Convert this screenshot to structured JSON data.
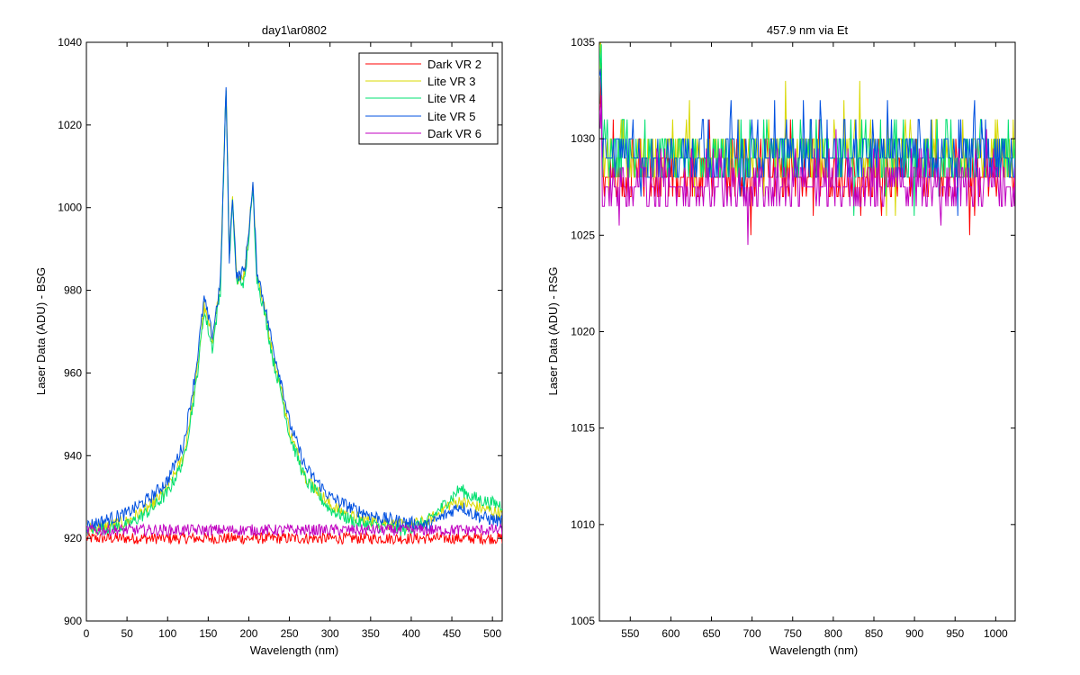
{
  "figure": {
    "background": "#ffffff"
  },
  "chart_data": [
    {
      "type": "line",
      "title": "day1\\ar0802",
      "xlabel": "Wavelength (nm)",
      "ylabel": "Laser Data (ADU) - BSG",
      "xlim": [
        0,
        512
      ],
      "ylim": [
        900,
        1040
      ],
      "xticks": [
        0,
        50,
        100,
        150,
        200,
        250,
        300,
        350,
        400,
        450,
        500
      ],
      "yticks": [
        900,
        920,
        940,
        960,
        980,
        1000,
        1020,
        1040
      ],
      "grid": false,
      "legend": {
        "position": "top-right"
      },
      "series": [
        {
          "name": "Dark VR 2",
          "color": "#ff0000",
          "shape": "flat",
          "x": [
            0,
            512
          ],
          "y": [
            920,
            920
          ]
        },
        {
          "name": "Lite VR 3",
          "color": "#d8d800",
          "shape": "peak",
          "x": [
            0,
            50,
            80,
            100,
            120,
            135,
            145,
            155,
            165,
            172,
            176,
            180,
            185,
            195,
            205,
            210,
            220,
            230,
            240,
            250,
            270,
            300,
            330,
            360,
            390,
            420,
            445,
            460,
            475,
            490,
            512
          ],
          "y": [
            922,
            924,
            928,
            932,
            940,
            958,
            976,
            968,
            982,
            1030,
            988,
            1002,
            983,
            984,
            1006,
            984,
            975,
            964,
            956,
            946,
            935,
            928,
            925,
            924,
            923,
            924,
            928,
            929,
            928,
            927,
            926
          ]
        },
        {
          "name": "Lite VR 4",
          "color": "#00e070",
          "shape": "peak",
          "x": [
            0,
            50,
            80,
            100,
            120,
            135,
            145,
            155,
            165,
            172,
            176,
            180,
            185,
            195,
            205,
            210,
            220,
            230,
            240,
            250,
            270,
            300,
            330,
            360,
            390,
            420,
            445,
            460,
            475,
            490,
            512
          ],
          "y": [
            922,
            923,
            927,
            931,
            939,
            957,
            975,
            966,
            980,
            1029,
            987,
            1001,
            982,
            982,
            1004,
            983,
            974,
            963,
            955,
            945,
            934,
            927,
            924,
            923,
            922,
            924,
            929,
            932,
            930,
            929,
            928
          ]
        },
        {
          "name": "Lite VR 5",
          "color": "#0050e0",
          "shape": "peak",
          "x": [
            0,
            50,
            80,
            100,
            120,
            135,
            145,
            155,
            165,
            172,
            176,
            180,
            185,
            195,
            205,
            210,
            220,
            230,
            240,
            250,
            270,
            300,
            330,
            360,
            390,
            420,
            445,
            460,
            475,
            490,
            512
          ],
          "y": [
            923,
            926,
            930,
            934,
            943,
            961,
            978,
            969,
            982,
            1029,
            988,
            1003,
            983,
            985,
            1005,
            985,
            976,
            966,
            958,
            948,
            937,
            930,
            927,
            925,
            924,
            923,
            926,
            928,
            926,
            925,
            924
          ]
        },
        {
          "name": "Dark VR 6",
          "color": "#c000c0",
          "shape": "flat",
          "x": [
            0,
            512
          ],
          "y": [
            922,
            922
          ]
        }
      ]
    },
    {
      "type": "line",
      "title": "457.9 nm via Et",
      "xlabel": "Wavelength (nm)",
      "ylabel": "Laser Data (ADU) - RSG",
      "xlim": [
        512,
        1024
      ],
      "ylim": [
        1005,
        1035
      ],
      "xticks": [
        550,
        600,
        650,
        700,
        750,
        800,
        850,
        900,
        950,
        1000
      ],
      "yticks": [
        1005,
        1010,
        1015,
        1020,
        1025,
        1030,
        1035
      ],
      "grid": false,
      "legend": null,
      "series": [
        {
          "color": "#ff0000",
          "shape": "flat",
          "x": [
            512,
            1024
          ],
          "y": [
            1028,
            1028
          ]
        },
        {
          "color": "#d8d800",
          "shape": "flat",
          "x": [
            512,
            1024
          ],
          "y": [
            1029,
            1029
          ]
        },
        {
          "color": "#00e070",
          "shape": "flat",
          "x": [
            512,
            1024
          ],
          "y": [
            1029,
            1029
          ]
        },
        {
          "color": "#0050e0",
          "shape": "flat",
          "x": [
            512,
            1024
          ],
          "y": [
            1029,
            1029
          ]
        },
        {
          "color": "#c000c0",
          "shape": "flat",
          "x": [
            512,
            1024
          ],
          "y": [
            1027.5,
            1027.5
          ]
        }
      ]
    }
  ]
}
